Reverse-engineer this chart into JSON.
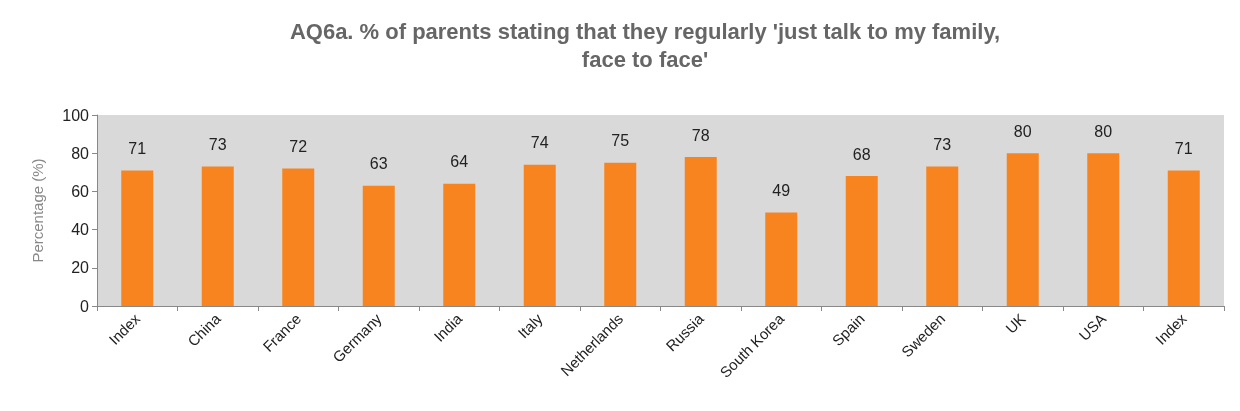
{
  "chart_data": {
    "type": "bar",
    "title": "AQ6a. % of parents stating that they regularly 'just talk to my family,\nface to face'",
    "ylabel": "Percentage (%)",
    "categories": [
      "Index",
      "China",
      "France",
      "Germany",
      "India",
      "Italy",
      "Netherlands",
      "Russia",
      "South Korea",
      "Spain",
      "Sweden",
      "UK",
      "USA",
      "Index"
    ],
    "values": [
      71,
      73,
      72,
      63,
      64,
      74,
      75,
      78,
      49,
      68,
      73,
      80,
      80,
      71
    ],
    "color": "#f7841f",
    "ylim": [
      0,
      100
    ],
    "yticks": [
      0,
      20,
      40,
      60,
      80,
      100
    ],
    "grid": false,
    "data_labels": true
  }
}
